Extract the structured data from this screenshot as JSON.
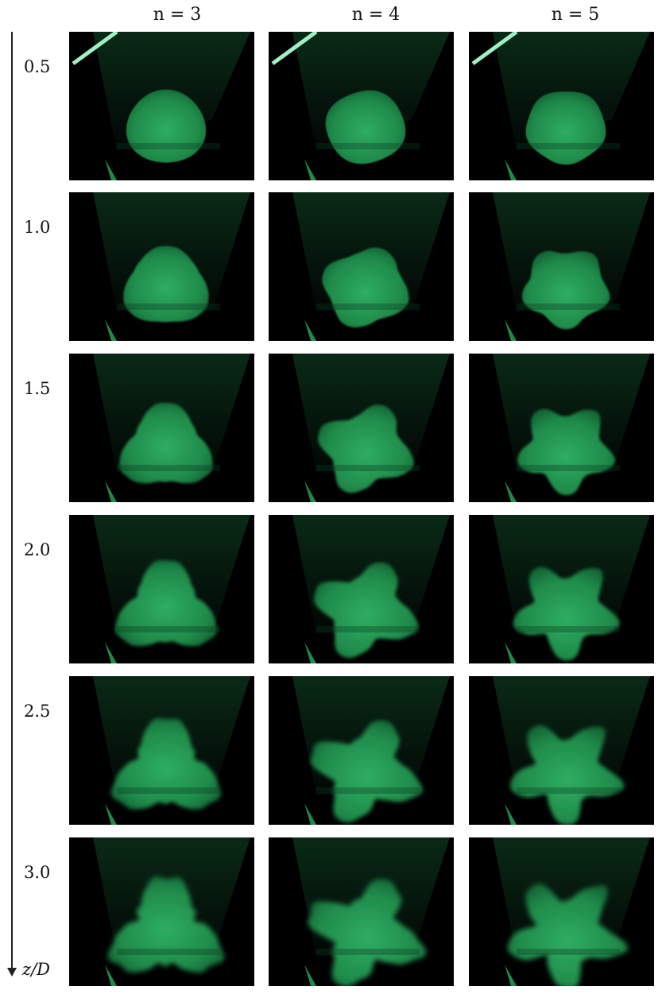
{
  "columns": [
    {
      "label": "n = 3",
      "lobes": 3
    },
    {
      "label": "n = 4",
      "lobes": 4
    },
    {
      "label": "n = 5",
      "lobes": 5
    }
  ],
  "rows": [
    {
      "label": "0.5",
      "value": 0.5
    },
    {
      "label": "1.0",
      "value": 1.0
    },
    {
      "label": "1.5",
      "value": 1.5
    },
    {
      "label": "2.0",
      "value": 2.0
    },
    {
      "label": "2.5",
      "value": 2.5
    },
    {
      "label": "3.0",
      "value": 3.0
    }
  ],
  "axis": {
    "label": "z/D"
  },
  "colors": {
    "fluorescence": "#1f8a4a",
    "background": "#000000",
    "page": "#ffffff"
  }
}
